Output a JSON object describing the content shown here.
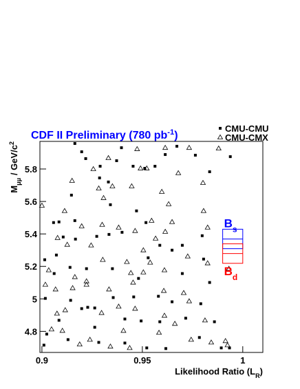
{
  "chart_data": {
    "type": "scatter",
    "title": [
      {
        "text": "CDF II Preliminary (780 pb"
      },
      {
        "text": "-1",
        "shift": "sup"
      },
      {
        "text": ")"
      }
    ],
    "title_color": "#0000ff",
    "x_label": [
      {
        "text": "Likelihood Ratio (L"
      },
      {
        "text": "R",
        "shift": "sub"
      },
      {
        "text": ")"
      }
    ],
    "y_label": [
      {
        "text": "M"
      },
      {
        "text": "μμ",
        "shift": "sub"
      },
      {
        "text": " / GeV/c"
      },
      {
        "text": "2",
        "shift": "sup"
      }
    ],
    "xlim": [
      0.899,
      1.01
    ],
    "ylim": [
      4.67,
      5.97
    ],
    "xticks": [
      0.9,
      0.95,
      1
    ],
    "yticks": [
      4.8,
      5,
      5.2,
      5.4,
      5.6,
      5.8
    ],
    "legend": "top-right",
    "series": [
      {
        "name": "CMU-CMU",
        "marker": "square",
        "color": "#000000",
        "x": [
          0.9164,
          0.9198,
          0.9218,
          0.929,
          0.9287,
          0.9331,
          0.9372,
          0.9396,
          0.9454,
          0.9512,
          0.9563,
          0.9614,
          0.9672,
          0.9764,
          0.9835,
          0.9938,
          0.9147,
          0.9164,
          0.9058,
          0.9085,
          0.9072,
          0.9106,
          0.9167,
          0.9273,
          0.9334,
          0.9341,
          0.9399,
          0.9471,
          0.9518,
          0.9587,
          0.9699,
          0.9798,
          0.9014,
          0.9061,
          0.914,
          0.9222,
          0.9351,
          0.9481,
          0.9529,
          0.9648,
          0.9805,
          0.9017,
          0.9143,
          0.9198,
          0.9263,
          0.9355,
          0.9457,
          0.958,
          0.9791,
          0.9085,
          0.9263,
          0.9413,
          0.9494,
          0.9587,
          0.9024,
          0.901,
          0.913,
          0.9283,
          0.9413,
          0.9522,
          0.9617,
          0.9784,
          0.9934,
          0.9893,
          0.9859,
          0.9716,
          0.9699,
          0.9835,
          0.9648,
          0.9228
        ],
        "values": [
          5.957,
          5.906,
          5.864,
          5.817,
          5.745,
          5.72,
          5.851,
          5.931,
          5.817,
          5.804,
          5.817,
          5.889,
          5.94,
          5.885,
          5.783,
          5.876,
          5.639,
          5.482,
          5.47,
          5.474,
          5.27,
          5.381,
          5.368,
          5.385,
          5.397,
          5.58,
          5.41,
          5.542,
          5.47,
          5.33,
          5.33,
          5.389,
          5.241,
          5.156,
          5.194,
          5.186,
          5.186,
          5.126,
          5.253,
          5.3,
          5.245,
          5.003,
          4.991,
          4.94,
          4.944,
          5.008,
          5.012,
          5.016,
          4.97,
          4.868,
          4.825,
          4.876,
          4.864,
          4.859,
          4.783,
          4.715,
          4.749,
          4.732,
          4.728,
          4.698,
          4.694,
          4.762,
          4.698,
          4.698,
          4.859,
          4.881,
          5.156,
          5.101,
          4.982,
          4.948
        ]
      },
      {
        "name": "CMU-CMX",
        "marker": "triangle",
        "color": "#000000",
        "x": [
          0.9,
          0.9017,
          0.9034,
          0.9068,
          0.9078,
          0.9113,
          0.9126,
          0.9075,
          0.9048,
          0.9102,
          0.9188,
          0.915,
          0.9256,
          0.9283,
          0.9307,
          0.9331,
          0.9351,
          0.9447,
          0.9474,
          0.9491,
          0.9522,
          0.9597,
          0.9614,
          0.9679,
          0.9733,
          0.9802,
          0.988,
          0.9631,
          0.9648,
          0.9198,
          0.9245,
          0.93,
          0.9382,
          0.9464,
          0.9546,
          0.9614,
          0.9825,
          0.9805,
          0.9164,
          0.9222,
          0.9303,
          0.9423,
          0.9443,
          0.9505,
          0.9539,
          0.961,
          0.9726,
          0.9825,
          0.9931,
          0.9153,
          0.9222,
          0.9334,
          0.9454,
          0.9607,
          0.9733,
          0.9116,
          0.9297,
          0.9382,
          0.9464,
          0.961,
          0.9706,
          0.9812,
          0.9914,
          0.9924,
          0.9239,
          0.9341,
          0.9406,
          0.9437,
          0.9583,
          0.9662,
          0.9743,
          0.9843,
          0.9505,
          0.9566
        ],
        "values": [
          5.575,
          5.088,
          5.177,
          5.059,
          5.376,
          5.542,
          5.334,
          4.91,
          4.813,
          4.804,
          4.72,
          5.728,
          5.8,
          5.681,
          5.622,
          5.868,
          5.694,
          5.694,
          5.923,
          5.804,
          5.804,
          5.66,
          5.931,
          5.775,
          5.931,
          5.715,
          5.927,
          5.584,
          5.474,
          5.448,
          5.33,
          5.457,
          5.44,
          5.419,
          5.482,
          5.414,
          5.44,
          5.542,
          5.135,
          5.109,
          5.241,
          5.228,
          5.16,
          5.164,
          5.224,
          5.177,
          5.262,
          5.22,
          5.186,
          5.067,
          5.088,
          5.059,
          5.101,
          5.05,
          4.986,
          4.931,
          4.914,
          4.953,
          4.94,
          4.897,
          5.037,
          4.868,
          4.741,
          4.715,
          4.749,
          4.707,
          4.804,
          4.698,
          4.792,
          4.847,
          4.749,
          4.732,
          5.3,
          5.372
        ]
      }
    ],
    "annotations": [
      {
        "text": "B",
        "sub": "s",
        "color": "#0000ff",
        "x": [
          0.99,
          1.0
        ],
        "y": [
          5.309,
          5.429
        ],
        "center": 5.369,
        "label_side": "top"
      },
      {
        "text": "B",
        "sub": "d",
        "color": "#ff0000",
        "x": [
          0.99,
          1.0
        ],
        "y": [
          5.219,
          5.339
        ],
        "center": 5.279,
        "label_side": "bottom"
      }
    ]
  }
}
